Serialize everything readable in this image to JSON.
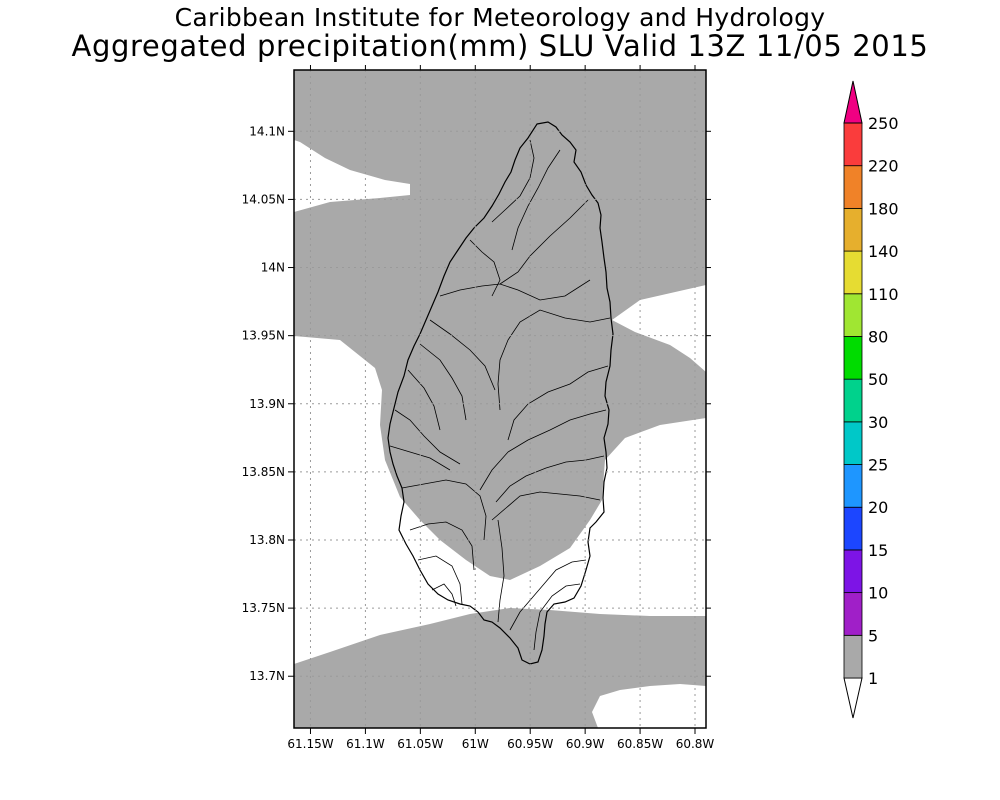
{
  "header": {
    "title": "Caribbean Institute for Meteorology and Hydrology",
    "subtitle": "Aggregated precipitation(mm) SLU Valid 13Z 11/05 2015"
  },
  "map": {
    "lon_range": [
      -61.165,
      -60.79
    ],
    "lat_range": [
      13.662,
      14.145
    ],
    "lon_ticks": [
      {
        "value": -61.15,
        "label": "61.15W"
      },
      {
        "value": -61.1,
        "label": "61.1W"
      },
      {
        "value": -61.05,
        "label": "61.05W"
      },
      {
        "value": -61.0,
        "label": "61W"
      },
      {
        "value": -60.95,
        "label": "60.95W"
      },
      {
        "value": -60.9,
        "label": "60.9W"
      },
      {
        "value": -60.85,
        "label": "60.85W"
      },
      {
        "value": -60.8,
        "label": "60.8W"
      }
    ],
    "lat_ticks": [
      {
        "value": 14.1,
        "label": "14.1N"
      },
      {
        "value": 14.05,
        "label": "14.05N"
      },
      {
        "value": 14.0,
        "label": "14N"
      },
      {
        "value": 13.95,
        "label": "13.95N"
      },
      {
        "value": 13.9,
        "label": "13.9N"
      },
      {
        "value": 13.85,
        "label": "13.85N"
      },
      {
        "value": 13.8,
        "label": "13.8N"
      },
      {
        "value": 13.75,
        "label": "13.75N"
      },
      {
        "value": 13.7,
        "label": "13.7N"
      }
    ],
    "grid": "dotted",
    "shaded_class": "1-5 mm",
    "shade_color": "#a9a9a9"
  },
  "legend": {
    "placement": "right",
    "bands": [
      {
        "label": "1",
        "color": "#ffffff"
      },
      {
        "label": "5",
        "color": "#a9a9a9"
      },
      {
        "label": "10",
        "color": "#a01fc8"
      },
      {
        "label": "15",
        "color": "#7d14e6"
      },
      {
        "label": "20",
        "color": "#1c46ff"
      },
      {
        "label": "25",
        "color": "#1e96ff"
      },
      {
        "label": "30",
        "color": "#00c8c8"
      },
      {
        "label": "50",
        "color": "#00d28c"
      },
      {
        "label": "80",
        "color": "#00dc00"
      },
      {
        "label": "110",
        "color": "#a0e632"
      },
      {
        "label": "140",
        "color": "#e6dc32"
      },
      {
        "label": "180",
        "color": "#e6af2d"
      },
      {
        "label": "220",
        "color": "#f08228"
      },
      {
        "label": "250",
        "color": "#fa3c3c"
      }
    ],
    "top_cap_color": "#f00082",
    "bottom_cap_color": "#ffffff"
  }
}
